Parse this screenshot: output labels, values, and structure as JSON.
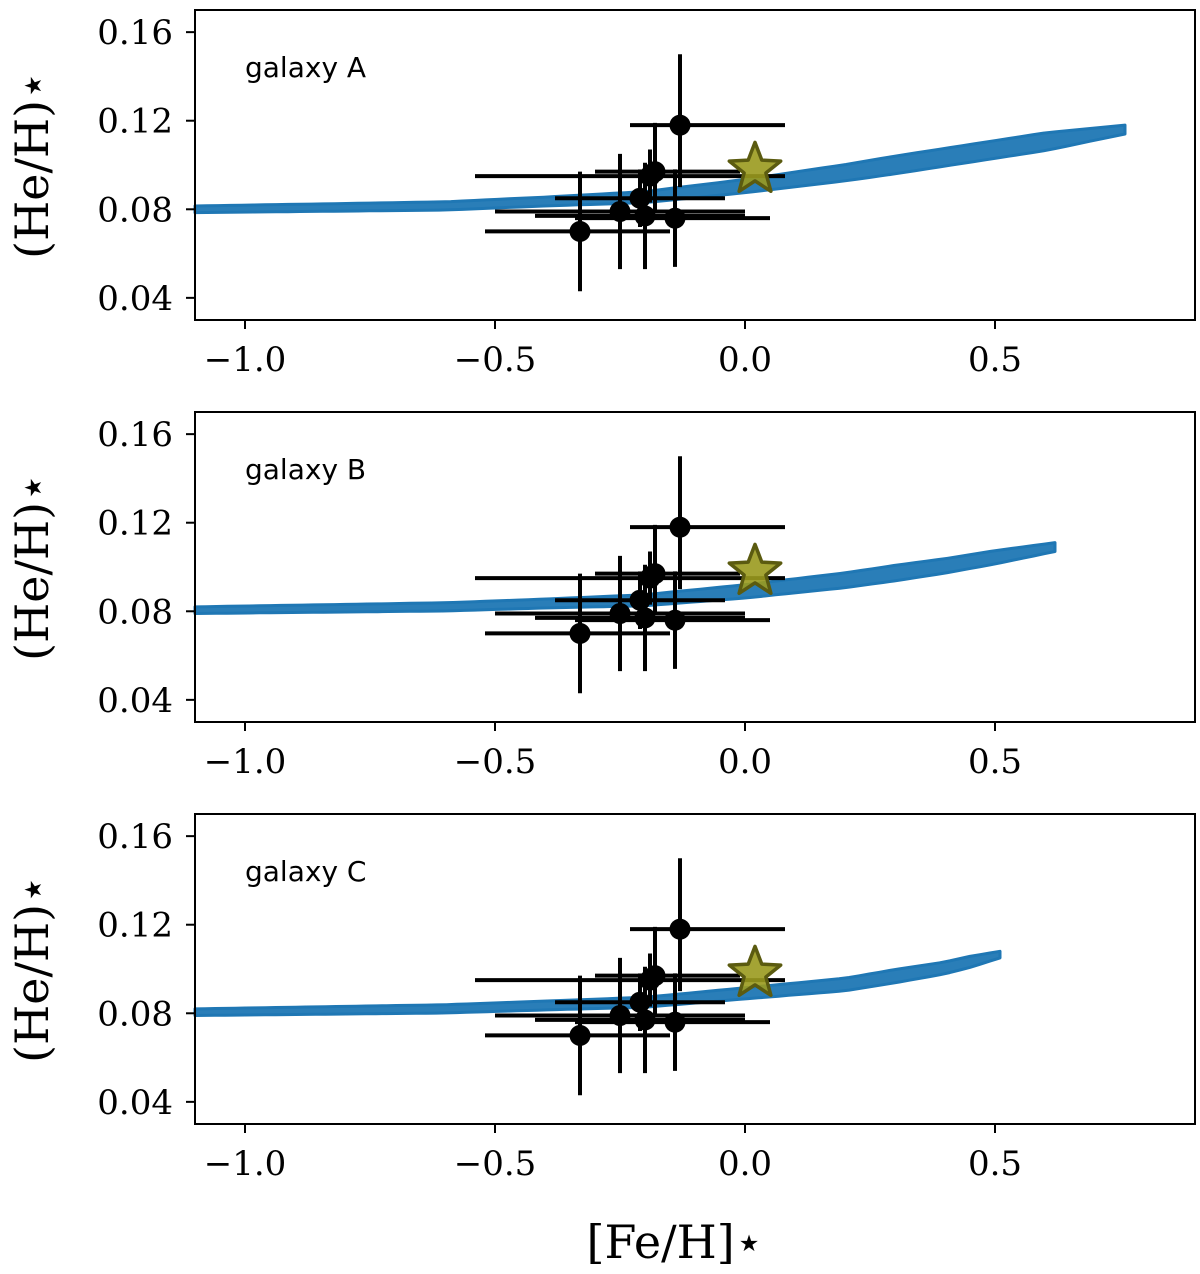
{
  "colors": {
    "band": "#1f77b4",
    "errorbar": "#000000",
    "star_fill": "#9a9a1e",
    "star_edge": "#5b5b10",
    "axis": "#000000"
  },
  "chart_data": {
    "type": "scatter",
    "xlabel": "[Fe/H]⋆",
    "ylabel": "(He/H)⋆",
    "xlim": [
      -1.1,
      0.9
    ],
    "ylim": [
      0.03,
      0.17
    ],
    "xticks": [
      -1.0,
      -0.5,
      0.0,
      0.5
    ],
    "xtick_labels": [
      "−1.0",
      "−0.5",
      "0.0",
      "0.5"
    ],
    "yticks": [
      0.04,
      0.08,
      0.12,
      0.16
    ],
    "ytick_labels": [
      "0.04",
      "0.08",
      "0.12",
      "0.16"
    ],
    "observations": {
      "points": [
        {
          "x": -0.13,
          "y": 0.118,
          "xerr": [
            0.1,
            0.21
          ],
          "yerr": [
            0.028,
            0.032
          ]
        },
        {
          "x": -0.18,
          "y": 0.097,
          "xerr": [
            0.12,
            0.17
          ],
          "yerr": [
            0.018,
            0.022
          ]
        },
        {
          "x": -0.19,
          "y": 0.095,
          "xerr": [
            0.35,
            0.27
          ],
          "yerr": [
            0.012,
            0.012
          ]
        },
        {
          "x": -0.21,
          "y": 0.085,
          "xerr": [
            0.17,
            0.17
          ],
          "yerr": [
            0.013,
            0.013
          ]
        },
        {
          "x": -0.25,
          "y": 0.079,
          "xerr": [
            0.25,
            0.25
          ],
          "yerr": [
            0.026,
            0.026
          ]
        },
        {
          "x": -0.2,
          "y": 0.077,
          "xerr": [
            0.22,
            0.2
          ],
          "yerr": [
            0.024,
            0.024
          ]
        },
        {
          "x": -0.14,
          "y": 0.076,
          "xerr": [
            0.2,
            0.19
          ],
          "yerr": [
            0.022,
            0.022
          ]
        },
        {
          "x": -0.33,
          "y": 0.07,
          "xerr": [
            0.19,
            0.18
          ],
          "yerr": [
            0.027,
            0.027
          ]
        }
      ]
    },
    "sun": {
      "x": 0.02,
      "y": 0.098
    },
    "panels": [
      {
        "label": "galaxy A",
        "band_center": [
          [
            -1.1,
            0.08
          ],
          [
            -0.6,
            0.0815
          ],
          [
            -0.2,
            0.0855
          ],
          [
            0.0,
            0.0905
          ],
          [
            0.2,
            0.0965
          ],
          [
            0.4,
            0.1035
          ],
          [
            0.6,
            0.1105
          ],
          [
            0.76,
            0.116
          ]
        ],
        "band_halfwidth": [
          [
            -1.1,
            0.0015
          ],
          [
            -0.4,
            0.002
          ],
          [
            0.0,
            0.003
          ],
          [
            0.3,
            0.004
          ],
          [
            0.6,
            0.004
          ],
          [
            0.76,
            0.002
          ]
        ]
      },
      {
        "label": "galaxy B",
        "band_center": [
          [
            -1.1,
            0.0805
          ],
          [
            -0.6,
            0.082
          ],
          [
            -0.2,
            0.085
          ],
          [
            0.0,
            0.089
          ],
          [
            0.2,
            0.094
          ],
          [
            0.4,
            0.1005
          ],
          [
            0.62,
            0.109
          ]
        ],
        "band_halfwidth": [
          [
            -1.1,
            0.0015
          ],
          [
            -0.4,
            0.002
          ],
          [
            0.0,
            0.003
          ],
          [
            0.3,
            0.0035
          ],
          [
            0.5,
            0.003
          ],
          [
            0.62,
            0.002
          ]
        ]
      },
      {
        "label": "galaxy C",
        "band_center": [
          [
            -1.1,
            0.0805
          ],
          [
            -0.6,
            0.082
          ],
          [
            -0.2,
            0.085
          ],
          [
            0.0,
            0.089
          ],
          [
            0.2,
            0.093
          ],
          [
            0.4,
            0.1005
          ],
          [
            0.51,
            0.1065
          ]
        ],
        "band_halfwidth": [
          [
            -1.1,
            0.0015
          ],
          [
            -0.4,
            0.002
          ],
          [
            0.0,
            0.0025
          ],
          [
            0.3,
            0.003
          ],
          [
            0.45,
            0.0025
          ],
          [
            0.51,
            0.0015
          ]
        ]
      }
    ]
  }
}
